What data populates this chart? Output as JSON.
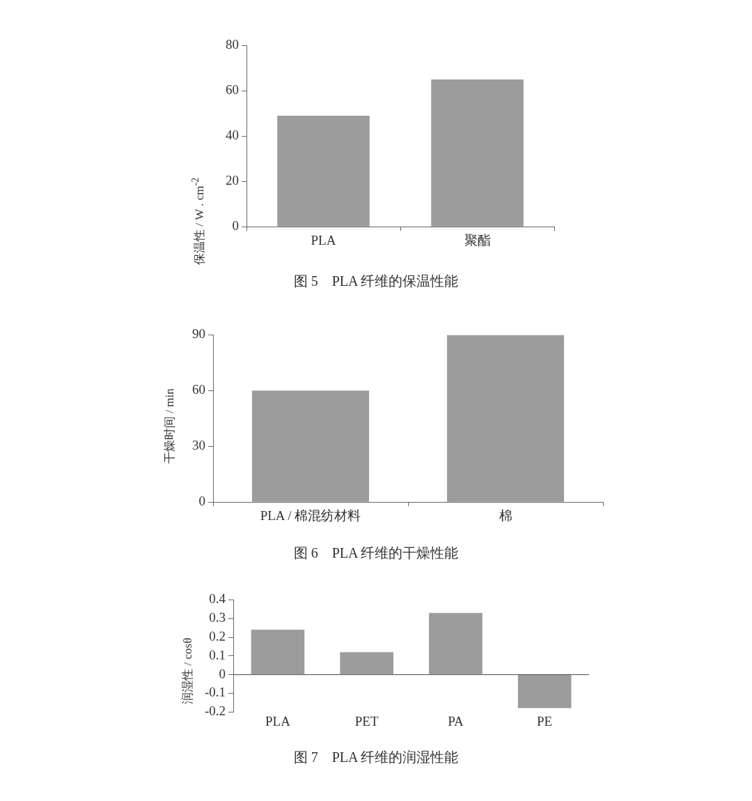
{
  "chart_data": [
    {
      "type": "bar",
      "title": "图 5　PLA 纤维的保温性能",
      "ylabel": "保温性 / W . cm$^{-2}$",
      "categories": [
        "PLA",
        "聚酯"
      ],
      "values": [
        49,
        65
      ],
      "color": "#9c9c9c",
      "ylim": [
        0,
        80
      ],
      "yticks": [
        0,
        20,
        40,
        60,
        80
      ],
      "grid": false,
      "legend": false
    },
    {
      "type": "bar",
      "title": "图 6　PLA 纤维的干燥性能",
      "ylabel": "干燥时间 / min",
      "categories": [
        "PLA / 棉混纺材料",
        "棉"
      ],
      "values": [
        60,
        90
      ],
      "color": "#9c9c9c",
      "ylim": [
        0,
        90
      ],
      "yticks": [
        0,
        30,
        60,
        90
      ],
      "grid": false,
      "legend": false
    },
    {
      "type": "bar",
      "title": "图 7　PLA 纤维的润湿性能",
      "ylabel": "润湿性 / cosθ",
      "categories": [
        "PLA",
        "PET",
        "PA",
        "PE"
      ],
      "values": [
        0.24,
        0.12,
        0.33,
        -0.18
      ],
      "color": "#9c9c9c",
      "ylim": [
        -0.2,
        0.4
      ],
      "yticks": [
        -0.2,
        -0.1,
        0,
        0.1,
        0.2,
        0.3,
        0.4
      ],
      "ref_lines": [
        {
          "axis": "y",
          "value": 0,
          "color": "#666666"
        }
      ],
      "grid": false,
      "legend": false
    }
  ]
}
